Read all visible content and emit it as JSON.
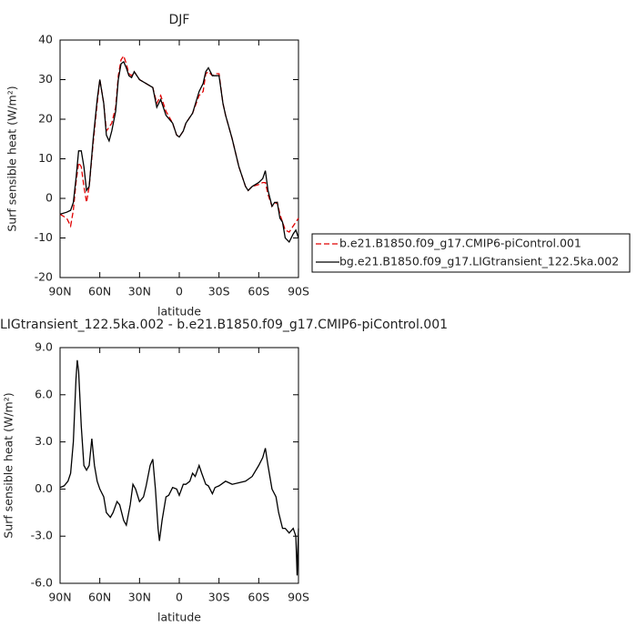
{
  "chart_data": [
    {
      "type": "line",
      "title": "DJF",
      "ylabel": "Surf sensible heat (W/m²)",
      "xlabel": "latitude",
      "x": [
        90,
        85,
        82,
        80,
        78,
        76,
        74,
        72,
        70,
        68,
        65,
        62,
        60,
        57,
        55,
        53,
        51,
        48,
        46,
        44,
        42,
        40,
        38,
        36,
        34,
        30,
        25,
        20,
        17,
        14,
        10,
        5,
        2,
        0,
        -3,
        -5,
        -10,
        -15,
        -18,
        -20,
        -22,
        -25,
        -28,
        -30,
        -33,
        -35,
        -40,
        -45,
        -50,
        -52,
        -55,
        -60,
        -63,
        -65,
        -67,
        -70,
        -72,
        -74,
        -76,
        -78,
        -80,
        -83,
        -86,
        -88,
        -90
      ],
      "series": [
        {
          "name": "b.e21.B1850.f09_g17.CMIP6-piControl.001",
          "color": "#e00000",
          "dashed": true,
          "values": [
            -4,
            -5,
            -7,
            -3,
            4,
            9,
            8,
            3,
            -1,
            3,
            14,
            24,
            30,
            24,
            17,
            18,
            19,
            23,
            31,
            35,
            36,
            34,
            31.5,
            31,
            32,
            30,
            29,
            28,
            24,
            26,
            22,
            19,
            16,
            15.5,
            17,
            19,
            21.5,
            26,
            27,
            31.5,
            32,
            31,
            31.5,
            31.5,
            24,
            21,
            15,
            8,
            3,
            2,
            3,
            3.5,
            4,
            4,
            1,
            -2,
            -1.5,
            -1,
            -4,
            -6,
            -8,
            -8.5,
            -7,
            -6,
            -5
          ]
        },
        {
          "name": "bg.e21.B1850.f09_g17.LIGtransient_122.5ka.002",
          "color": "#000000",
          "dashed": false,
          "values": [
            -4,
            -3.5,
            -3,
            -1,
            5,
            12,
            12,
            8,
            2,
            3,
            15,
            25,
            30,
            24,
            16,
            14.5,
            17,
            22,
            30,
            34,
            34.5,
            33,
            31,
            30.5,
            32,
            30,
            29,
            28,
            23,
            25,
            21,
            19,
            16,
            15.5,
            17,
            19,
            21.5,
            27,
            29,
            32,
            33,
            31,
            31,
            31,
            24,
            21,
            15,
            8,
            3,
            2,
            3,
            4,
            5,
            7,
            2,
            -2,
            -1,
            -1,
            -5,
            -6,
            -10,
            -11,
            -9,
            -8,
            -10
          ]
        }
      ],
      "xlim": [
        90,
        -90
      ],
      "xticks": [
        {
          "value": 90,
          "label": "90N"
        },
        {
          "value": 60,
          "label": "60N"
        },
        {
          "value": 30,
          "label": "30N"
        },
        0,
        {
          "value": -30,
          "label": "30S"
        },
        {
          "value": -60,
          "label": "60S"
        },
        {
          "value": -90,
          "label": "90S"
        }
      ],
      "ylim": [
        -20,
        40
      ],
      "yticks": [
        -20,
        -10,
        0,
        10,
        20,
        30,
        40
      ],
      "legend": "right"
    },
    {
      "type": "line",
      "title": "LIGtransient_122.5ka.002 - b.e21.B1850.f09_g17.CMIP6-piControl.001",
      "ylabel": "Surf sensible heat (W/m²)",
      "xlabel": "latitude",
      "x": [
        90,
        87,
        84,
        82,
        80,
        78,
        77,
        76,
        74,
        72,
        70,
        68,
        66,
        64,
        62,
        60,
        57,
        55,
        52,
        50,
        47,
        45,
        42,
        40,
        37,
        35,
        33,
        30,
        27,
        25,
        22,
        20,
        18,
        16,
        15,
        13,
        10,
        8,
        5,
        2,
        0,
        -3,
        -5,
        -8,
        -10,
        -12,
        -15,
        -17,
        -20,
        -22,
        -25,
        -27,
        -30,
        -35,
        -40,
        -45,
        -50,
        -55,
        -60,
        -63,
        -65,
        -67,
        -70,
        -73,
        -75,
        -78,
        -80,
        -83,
        -86,
        -88,
        -89,
        -90
      ],
      "values": [
        0.1,
        0.2,
        0.5,
        1.0,
        3.0,
        7.0,
        8.2,
        7.5,
        4,
        1.5,
        1.2,
        1.5,
        3.2,
        1.5,
        0.5,
        0,
        -0.5,
        -1.5,
        -1.8,
        -1.5,
        -0.8,
        -1.0,
        -2.0,
        -2.3,
        -1.0,
        0.3,
        0.0,
        -0.8,
        -0.5,
        0.2,
        1.5,
        1.9,
        0,
        -2.5,
        -3.3,
        -2.0,
        -0.5,
        -0.4,
        0.1,
        0,
        -0.4,
        0.3,
        0.3,
        0.5,
        1.0,
        0.8,
        1.5,
        1.0,
        0.3,
        0.2,
        -0.3,
        0.1,
        0.2,
        0.5,
        0.3,
        0.4,
        0.5,
        0.8,
        1.5,
        2.0,
        2.6,
        1.5,
        0,
        -0.5,
        -1.5,
        -2.5,
        -2.5,
        -2.8,
        -2.5,
        -3.0,
        -5.5,
        -2.5
      ],
      "color": "#000000",
      "xlim": [
        90,
        -90
      ],
      "xticks": [
        {
          "value": 90,
          "label": "90N"
        },
        {
          "value": 60,
          "label": "60N"
        },
        {
          "value": 30,
          "label": "30N"
        },
        0,
        {
          "value": -30,
          "label": "30S"
        },
        {
          "value": -60,
          "label": "60S"
        },
        {
          "value": -90,
          "label": "90S"
        }
      ],
      "ylim": [
        -6,
        9
      ],
      "yticks": [
        {
          "value": -6,
          "label": "-6.0"
        },
        {
          "value": -3,
          "label": "-3.0"
        },
        {
          "value": 0,
          "label": "0.0"
        },
        {
          "value": 3,
          "label": "3.0"
        },
        {
          "value": 6,
          "label": "6.0"
        },
        {
          "value": 9,
          "label": "9.0"
        }
      ]
    }
  ]
}
